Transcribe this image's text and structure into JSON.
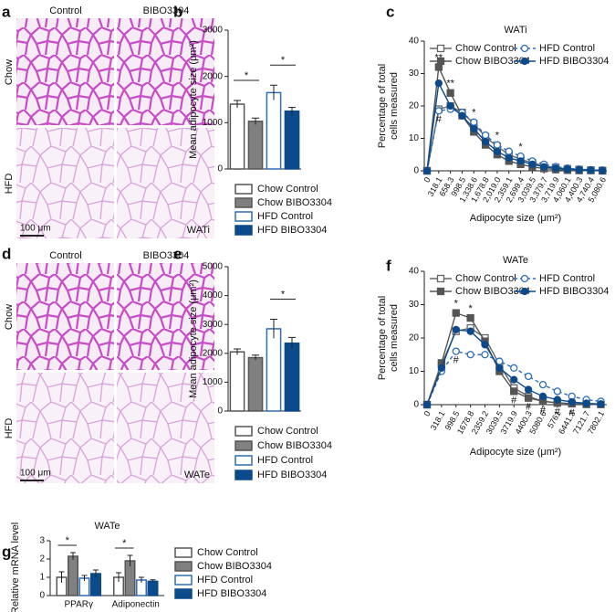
{
  "panel_labels": [
    "a",
    "b",
    "c",
    "d",
    "e",
    "f",
    "g"
  ],
  "histology": [
    {
      "columns": [
        "Control",
        "BIBO3304"
      ],
      "rows": [
        "Chow",
        "HFD"
      ],
      "scale_bar": "100 μm",
      "tissue": "WATi"
    },
    {
      "columns": [
        "Control",
        "BIBO3304"
      ],
      "rows": [
        "Chow",
        "HFD"
      ],
      "scale_bar": "100 μm",
      "tissue": "WATe"
    }
  ],
  "chart_data": [
    {
      "type": "bar",
      "ylabel": "Mean adipocyte size (μm²)",
      "categories": [
        "Chow Control",
        "Chow BIBO3304",
        "HFD Control",
        "HFD BIBO3304"
      ],
      "values": [
        1400,
        1030,
        1650,
        1250
      ],
      "errors": [
        80,
        70,
        160,
        80
      ],
      "colors": [
        "#ffffff",
        "#808080",
        "#ffffff",
        "#0b4a8b"
      ],
      "edge_colors": [
        "#555555",
        "#555555",
        "#2d6db5",
        "#0b4a8b"
      ],
      "ylim": [
        0,
        3000
      ],
      "yticks": [
        0,
        1000,
        2000,
        3000
      ],
      "comparisons": [
        {
          "between": [
            "Chow Control",
            "Chow BIBO3304"
          ],
          "label": "*"
        },
        {
          "between": [
            "HFD Control",
            "HFD BIBO3304"
          ],
          "label": "*"
        }
      ]
    },
    {
      "type": "line",
      "title": "WATi",
      "xlabel": "Adipocyte size (μm²)",
      "ylabel": [
        "Percentage of total",
        "cells measured"
      ],
      "categories": [
        "0",
        "318.1",
        "658.3",
        "998.5",
        "1,338.6",
        "1,678.8",
        "2,019.0",
        "2,359.1",
        "2,699.4",
        "3,039.5",
        "3,379.7",
        "3,719.9",
        "4,060.1",
        "4,400.3",
        "4,740.4",
        "5,080.6"
      ],
      "series": [
        {
          "name": "Chow Control",
          "color": "#666666",
          "marker": "square-open",
          "line_style": "solid",
          "values": [
            0,
            19,
            20,
            18,
            14.5,
            10.5,
            7.5,
            5,
            3.5,
            2.5,
            1.5,
            1,
            0.6,
            0.4,
            0.2,
            0.1
          ]
        },
        {
          "name": "Chow BIBO3304",
          "color": "#555555",
          "marker": "square",
          "line_style": "solid",
          "values": [
            0,
            32,
            24,
            17,
            12,
            8,
            5,
            3,
            2,
            1.2,
            0.7,
            0.4,
            0.2,
            0.1,
            0.1,
            0
          ]
        },
        {
          "name": "HFD Control",
          "color": "#2d6db5",
          "marker": "circle-open",
          "line_style": "dashed",
          "values": [
            0,
            18.5,
            19,
            18,
            15,
            11,
            8,
            6,
            4.5,
            3,
            2,
            1.3,
            0.8,
            0.5,
            0.3,
            0.2
          ]
        },
        {
          "name": "HFD BIBO3304",
          "color": "#0b4a8b",
          "marker": "circle",
          "line_style": "solid",
          "values": [
            0,
            27,
            20,
            17,
            13,
            9,
            6,
            4,
            3,
            2,
            1.2,
            0.8,
            0.5,
            0.3,
            0.2,
            0.1
          ]
        }
      ],
      "ylim": [
        0,
        40
      ],
      "yticks": [
        0,
        10,
        20,
        30,
        40
      ],
      "annotations": [
        {
          "text": "**",
          "category": "318.1"
        },
        {
          "text": "**",
          "category": "658.3"
        },
        {
          "text": "*",
          "category": "1,338.6"
        },
        {
          "text": "*",
          "category": "2,019.0"
        },
        {
          "text": "*",
          "category": "2,699.4"
        },
        {
          "text": "#",
          "category": "318.1"
        }
      ]
    },
    {
      "type": "bar",
      "ylabel": "Mean adipocyte size (μm²)",
      "categories": [
        "Chow Control",
        "Chow BIBO3304",
        "HFD Control",
        "HFD BIBO3304"
      ],
      "values": [
        2050,
        1850,
        2850,
        2350
      ],
      "errors": [
        100,
        90,
        330,
        200
      ],
      "colors": [
        "#ffffff",
        "#808080",
        "#ffffff",
        "#0b4a8b"
      ],
      "edge_colors": [
        "#555555",
        "#555555",
        "#2d6db5",
        "#0b4a8b"
      ],
      "ylim": [
        0,
        5000
      ],
      "yticks": [
        0,
        1000,
        2000,
        3000,
        4000,
        5000
      ],
      "comparisons": [
        {
          "between": [
            "HFD Control",
            "HFD BIBO3304"
          ],
          "label": "*"
        }
      ]
    },
    {
      "type": "line",
      "title": "WATe",
      "xlabel": "Adipocyte size (μm²)",
      "ylabel": [
        "Percentage of total",
        "cells measured"
      ],
      "categories": [
        "0",
        "318.1",
        "998.5",
        "1678.8",
        "2359.2",
        "3039.5",
        "3719.9",
        "4400.3",
        "5080.6",
        "5761",
        "6441.3",
        "7121.7",
        "7802.1"
      ],
      "series": [
        {
          "name": "Chow Control",
          "color": "#666666",
          "marker": "square-open",
          "line_style": "solid",
          "values": [
            0,
            12,
            22,
            23,
            20,
            12,
            5,
            2.5,
            1,
            0.6,
            0.3,
            0.2,
            0.1
          ]
        },
        {
          "name": "Chow BIBO3304",
          "color": "#555555",
          "marker": "square",
          "line_style": "solid",
          "values": [
            0,
            12.5,
            27.5,
            26,
            19,
            10,
            4,
            2,
            1,
            0.5,
            0.3,
            0.1,
            0.1
          ]
        },
        {
          "name": "HFD Control",
          "color": "#2d6db5",
          "marker": "circle-open",
          "line_style": "dashed",
          "values": [
            0,
            10,
            16,
            15,
            15,
            13,
            11,
            8.5,
            6,
            4,
            2.5,
            1.5,
            1
          ]
        },
        {
          "name": "HFD BIBO3304",
          "color": "#0b4a8b",
          "marker": "circle",
          "line_style": "solid",
          "values": [
            0,
            11,
            22.5,
            22,
            18,
            11,
            7.5,
            4.5,
            2.5,
            1.5,
            0.8,
            0.4,
            0.2
          ]
        }
      ],
      "ylim": [
        0,
        40
      ],
      "yticks": [
        0,
        10,
        20,
        30,
        40
      ],
      "annotations": [
        {
          "text": "*",
          "category": "998.5"
        },
        {
          "text": "*",
          "category": "1678.8"
        },
        {
          "text": "#",
          "category": "998.5"
        },
        {
          "text": "#",
          "category": "3719.9"
        },
        {
          "text": "#",
          "category": "4400.3"
        },
        {
          "text": "#",
          "category": "5080.6"
        },
        {
          "text": "#",
          "category": "5761"
        },
        {
          "text": "#",
          "category": "6441.3"
        }
      ]
    },
    {
      "type": "grouped_bar",
      "title": "WATe",
      "ylabel": "Relative mRNA level",
      "categories": [
        "PPARγ",
        "Adiponectin"
      ],
      "series": [
        {
          "name": "Chow Control",
          "color": "#ffffff",
          "edge_color": "#555555",
          "values": [
            1.0,
            1.0
          ],
          "errors": [
            0.3,
            0.25
          ]
        },
        {
          "name": "Chow BIBO3304",
          "color": "#808080",
          "edge_color": "#555555",
          "values": [
            2.15,
            1.9
          ],
          "errors": [
            0.2,
            0.3
          ]
        },
        {
          "name": "HFD Control",
          "color": "#ffffff",
          "edge_color": "#2d6db5",
          "values": [
            0.95,
            0.85
          ],
          "errors": [
            0.15,
            0.15
          ]
        },
        {
          "name": "HFD BIBO3304",
          "color": "#0b4a8b",
          "edge_color": "#0b4a8b",
          "values": [
            1.2,
            0.78
          ],
          "errors": [
            0.2,
            0.08
          ]
        }
      ],
      "ylim": [
        0,
        3
      ],
      "yticks": [
        0,
        1,
        2,
        3
      ],
      "comparisons": [
        {
          "category": "PPARγ",
          "between": [
            "Chow Control",
            "Chow BIBO3304"
          ],
          "label": "*"
        },
        {
          "category": "Adiponectin",
          "between": [
            "Chow Control",
            "Chow BIBO3304"
          ],
          "label": "*"
        }
      ]
    }
  ]
}
